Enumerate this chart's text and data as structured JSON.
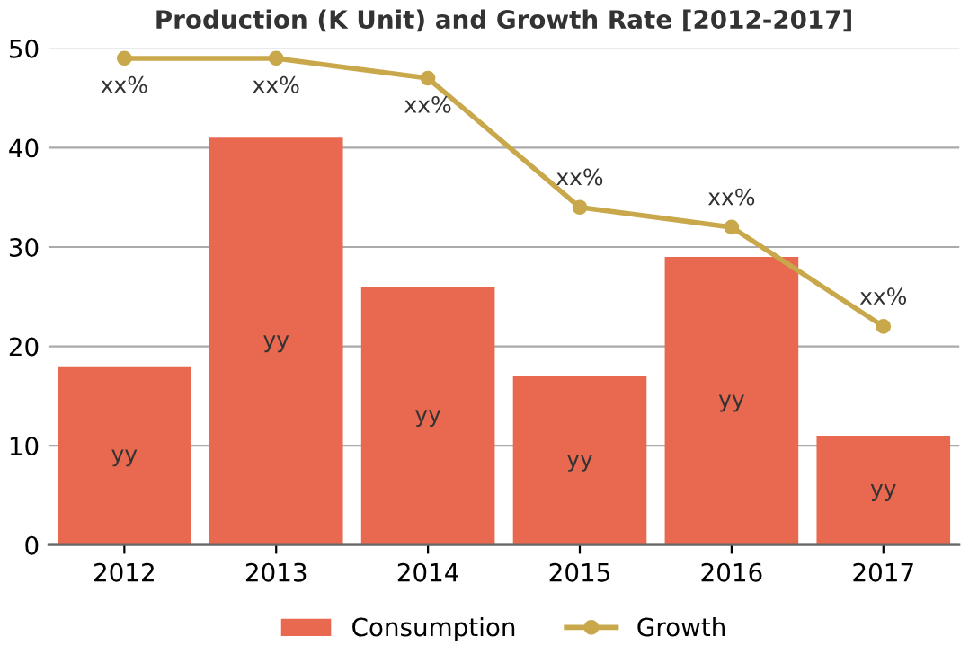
{
  "chart_data": {
    "type": "bar",
    "title": "Production (K Unit) and Growth Rate [2012-2017]",
    "categories": [
      "2012",
      "2013",
      "2014",
      "2015",
      "2016",
      "2017"
    ],
    "series": [
      {
        "name": "Consumption",
        "color": "#e8694f",
        "values": [
          18,
          41,
          26,
          17,
          29,
          11
        ],
        "value_labels": [
          "yy",
          "yy",
          "yy",
          "yy",
          "yy",
          "yy"
        ]
      },
      {
        "name": "Growth",
        "type": "line",
        "color": "#c9a84c",
        "marker": "circle",
        "values": [
          49,
          49,
          47,
          34,
          32,
          22
        ],
        "value_labels": [
          "xx%",
          "xx%",
          "xx%",
          "xx%",
          "xx%",
          "xx%"
        ]
      }
    ],
    "ylim": [
      0,
      50
    ],
    "yticks": [
      0,
      10,
      20,
      30,
      40,
      50
    ],
    "grid": "y",
    "legend": "bottom"
  }
}
